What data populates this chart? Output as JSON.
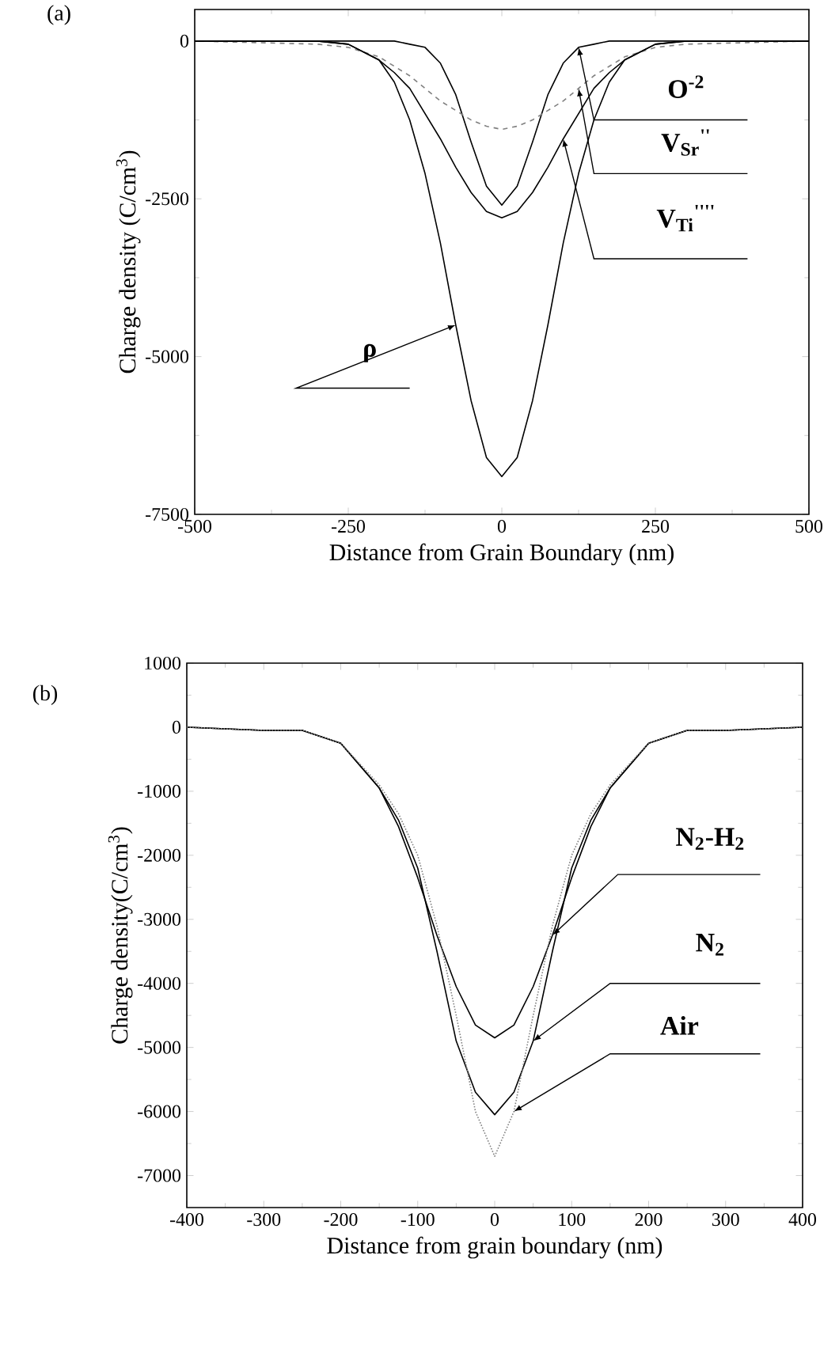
{
  "chart_data": [
    {
      "type": "line",
      "title": "(a)",
      "xlabel": "Distance from Grain Boundary (nm)",
      "ylabel": "Charge density (C/cm$^{3}$)",
      "xlim": [
        -500,
        500
      ],
      "ylim": [
        -7500,
        500
      ],
      "xticks": [
        -500,
        -250,
        0,
        250,
        500
      ],
      "yticks": [
        -7500,
        -5000,
        -2500,
        0
      ],
      "x": [
        -500,
        -300,
        -250,
        -200,
        -175,
        -150,
        -125,
        -100,
        -75,
        -50,
        -25,
        0,
        25,
        50,
        75,
        100,
        125,
        150,
        175,
        200,
        250,
        300,
        500
      ],
      "series": [
        {
          "color": "#000000",
          "line_style": "solid",
          "values": [
            0,
            0,
            0,
            0,
            0,
            -50,
            -100,
            -350,
            -850,
            -1600,
            -2300,
            -2600,
            -2300,
            -1600,
            -850,
            -350,
            -100,
            -50,
            0,
            0,
            0,
            0,
            0
          ]
        },
        {
          "color": "#808080",
          "line_style": "dashed",
          "values": [
            0,
            -50,
            -100,
            -250,
            -400,
            -550,
            -750,
            -950,
            -1100,
            -1250,
            -1350,
            -1400,
            -1350,
            -1250,
            -1100,
            -950,
            -750,
            -550,
            -400,
            -250,
            -100,
            -50,
            0
          ]
        },
        {
          "color": "#000000",
          "line_style": "solid",
          "values": [
            0,
            0,
            -50,
            -300,
            -500,
            -750,
            -1150,
            -1550,
            -2000,
            -2400,
            -2700,
            -2800,
            -2700,
            -2400,
            -2000,
            -1550,
            -1150,
            -750,
            -500,
            -300,
            -50,
            0,
            0
          ]
        },
        {
          "color": "#000000",
          "line_style": "solid",
          "values": [
            0,
            0,
            -50,
            -300,
            -650,
            -1250,
            -2100,
            -3200,
            -4500,
            -5700,
            -6600,
            -6900,
            -6600,
            -5700,
            -4500,
            -3200,
            -2100,
            -1250,
            -650,
            -300,
            -50,
            0,
            0
          ]
        }
      ],
      "annotations": [
        {
          "text": "O$^{-2}$",
          "x": 125,
          "y": -100
        },
        {
          "text": "V$_{Sr}$$^{''}$",
          "x": 125,
          "y": -750
        },
        {
          "text": "V$_{Ti}$$^{''''}$",
          "x": 100,
          "y": -1550
        },
        {
          "text": "ρ",
          "x": -75,
          "y": -4500
        }
      ]
    },
    {
      "type": "line",
      "title": "(b)",
      "xlabel": "Distance from grain boundary (nm)",
      "ylabel": "Charge density(C/cm$^{3}$)",
      "xlim": [
        -400,
        400
      ],
      "ylim": [
        -7500,
        1000
      ],
      "xticks": [
        -400,
        -300,
        -200,
        -100,
        0,
        100,
        200,
        300,
        400
      ],
      "yticks": [
        -7000,
        -6000,
        -5000,
        -4000,
        -3000,
        -2000,
        -1000,
        0,
        1000
      ],
      "x": [
        -400,
        -300,
        -250,
        -200,
        -150,
        -125,
        -100,
        -75,
        -50,
        -25,
        0,
        25,
        50,
        75,
        100,
        125,
        150,
        200,
        250,
        300,
        400
      ],
      "series": [
        {
          "color": "#000000",
          "line_style": "solid",
          "values": [
            0,
            -50,
            -50,
            -250,
            -950,
            -1550,
            -2350,
            -3250,
            -4050,
            -4650,
            -4850,
            -4650,
            -4050,
            -3250,
            -2350,
            -1550,
            -950,
            -250,
            -50,
            -50,
            0
          ]
        },
        {
          "color": "#000000",
          "line_style": "solid",
          "values": [
            0,
            -50,
            -50,
            -250,
            -950,
            -1450,
            -2200,
            -3500,
            -4900,
            -5700,
            -6050,
            -5700,
            -4900,
            -3500,
            -2200,
            -1450,
            -950,
            -250,
            -50,
            -50,
            0
          ]
        },
        {
          "color": "#808080",
          "line_style": "dotted",
          "values": [
            0,
            -50,
            -50,
            -250,
            -900,
            -1350,
            -2000,
            -3100,
            -4500,
            -6000,
            -6700,
            -6000,
            -4500,
            -3100,
            -2000,
            -1350,
            -900,
            -250,
            -50,
            -50,
            0
          ]
        }
      ],
      "annotations": [
        {
          "text": "N$_{2}$-H$_{2}$",
          "x": 75,
          "y": -3250
        },
        {
          "text": "N$_{2}$",
          "x": 50,
          "y": -4900
        },
        {
          "text": "Air",
          "x": 25,
          "y": -6000
        }
      ]
    }
  ]
}
